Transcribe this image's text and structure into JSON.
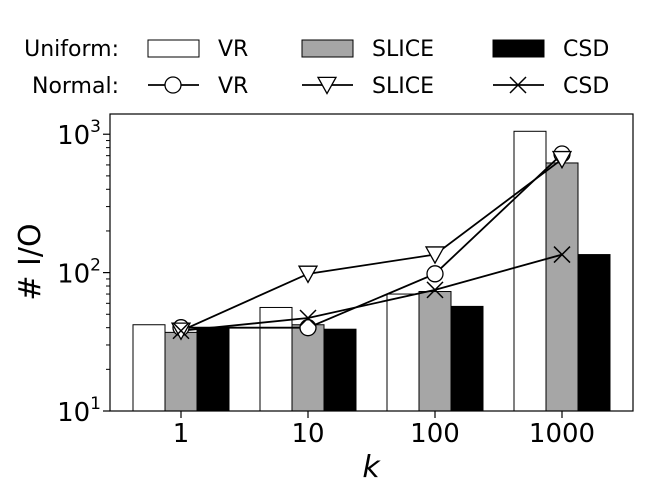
{
  "chart_data": {
    "type": "bar",
    "title": "",
    "xlabel": "k",
    "ylabel": "# I/O",
    "yscale": "log",
    "ylim": [
      10,
      1400
    ],
    "categories": [
      "1",
      "10",
      "100",
      "1000"
    ],
    "y_ticks": [
      {
        "value": 10,
        "base": "10",
        "exp": "1"
      },
      {
        "value": 100,
        "base": "10",
        "exp": "2"
      },
      {
        "value": 1000,
        "base": "10",
        "exp": "3"
      }
    ],
    "legend": {
      "placement": "top",
      "groups": [
        {
          "label": "Uniform:",
          "kind": "bar"
        },
        {
          "label": "Normal:",
          "kind": "line"
        }
      ]
    },
    "series": [
      {
        "name": "VR",
        "group": "Uniform",
        "kind": "bar",
        "color": "#ffffff",
        "values": [
          42,
          56,
          70,
          1050
        ]
      },
      {
        "name": "SLICE",
        "group": "Uniform",
        "kind": "bar",
        "color": "#a6a6a6",
        "values": [
          37,
          42,
          73,
          620
        ]
      },
      {
        "name": "CSD",
        "group": "Uniform",
        "kind": "bar",
        "color": "#000000",
        "values": [
          40,
          39,
          57,
          135
        ]
      },
      {
        "name": "VR",
        "group": "Normal",
        "kind": "line",
        "marker": "circle",
        "values": [
          40,
          40,
          98,
          720
        ]
      },
      {
        "name": "SLICE",
        "group": "Normal",
        "kind": "line",
        "marker": "triangle-down",
        "values": [
          38,
          98,
          135,
          660
        ]
      },
      {
        "name": "CSD",
        "group": "Normal",
        "kind": "line",
        "marker": "x",
        "values": [
          38,
          47,
          75,
          135
        ]
      }
    ]
  }
}
